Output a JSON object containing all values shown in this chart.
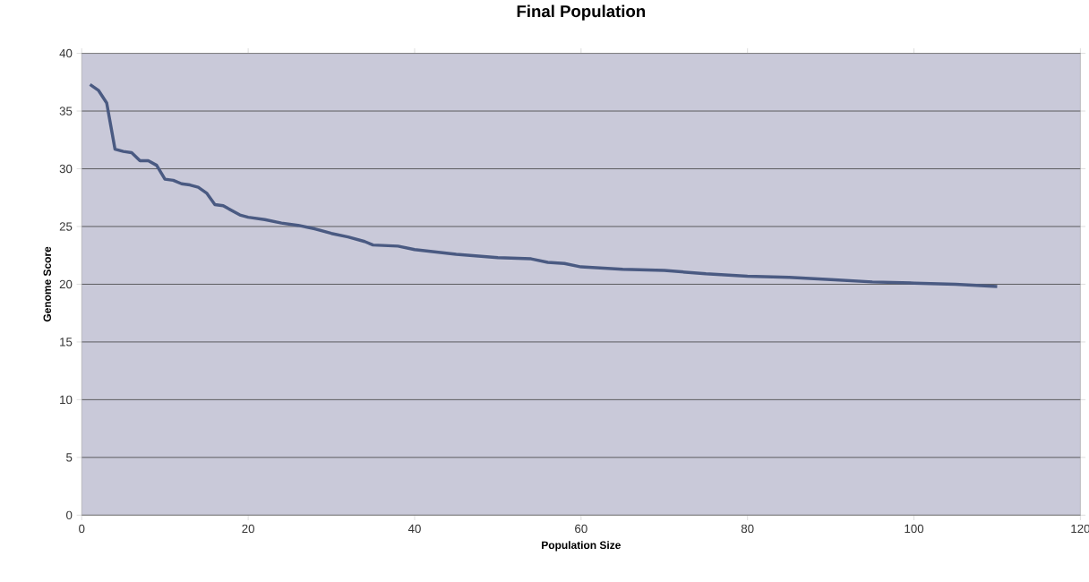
{
  "chart_data": {
    "type": "line",
    "title": "Final Population",
    "xlabel": "Population Size",
    "ylabel": "Genome Score",
    "xlim": [
      0,
      120
    ],
    "xticks": [
      0,
      20,
      40,
      60,
      80,
      100,
      120
    ],
    "ylim": [
      0,
      40
    ],
    "yticks": [
      0,
      5,
      10,
      15,
      20,
      25,
      30,
      35,
      40
    ],
    "grid": "y",
    "marker": "none",
    "line_style": "solid",
    "series": [
      {
        "color": "#4a5a82",
        "x": [
          1,
          2,
          3,
          4,
          5,
          6,
          7,
          8,
          9,
          10,
          11,
          12,
          13,
          14,
          15,
          16,
          17,
          18,
          19,
          20,
          22,
          24,
          26,
          28,
          30,
          32,
          34,
          35,
          38,
          40,
          45,
          50,
          54,
          56,
          58,
          60,
          65,
          70,
          75,
          80,
          85,
          90,
          95,
          100,
          105,
          110
        ],
        "values": [
          37.3,
          36.8,
          35.7,
          31.7,
          31.5,
          31.4,
          30.7,
          30.7,
          30.3,
          29.1,
          29.0,
          28.7,
          28.6,
          28.4,
          27.9,
          26.9,
          26.8,
          26.4,
          26.0,
          25.8,
          25.6,
          25.3,
          25.1,
          24.8,
          24.4,
          24.1,
          23.7,
          23.4,
          23.3,
          23.0,
          22.6,
          22.3,
          22.2,
          21.9,
          21.8,
          21.5,
          21.3,
          21.2,
          20.9,
          20.7,
          20.6,
          20.4,
          20.2,
          20.1,
          20.0,
          19.8
        ]
      }
    ]
  }
}
